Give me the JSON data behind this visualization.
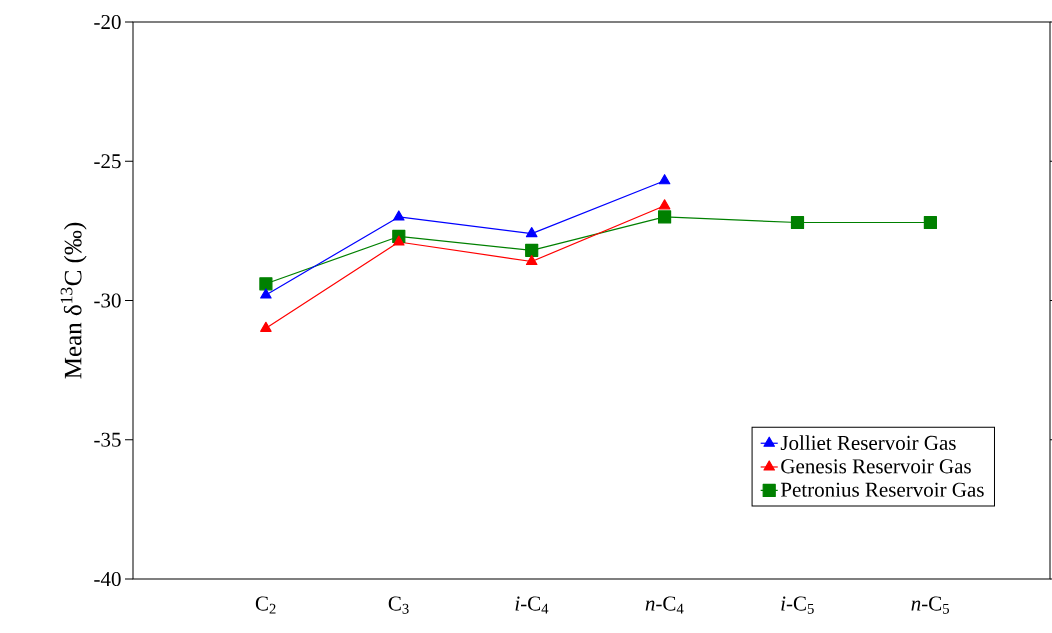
{
  "chart_data": {
    "type": "line",
    "ylabel": "Mean δ$^{13}$C (‰)",
    "categories": [
      "C$_{2}$",
      "C$_{3}$",
      "*i*-C$_{4}$",
      "*n*-C$_{4}$",
      "*i*-C$_{5}$",
      "*n*-C$_{5}$"
    ],
    "series": [
      {
        "name": "Jolliet Reservoir Gas",
        "color": "#0000ff",
        "marker": "triangle",
        "values": [
          -29.8,
          -27.0,
          -27.6,
          -25.7,
          null,
          null
        ]
      },
      {
        "name": "Genesis Reservoir Gas",
        "color": "#ff0000",
        "marker": "triangle",
        "values": [
          -31.0,
          -27.9,
          -28.6,
          -26.6,
          null,
          null
        ]
      },
      {
        "name": "Petronius Reservoir Gas",
        "color": "#008000",
        "marker": "square",
        "values": [
          -29.4,
          -27.7,
          -28.2,
          -27.0,
          -27.2,
          -27.2
        ]
      }
    ],
    "ylim": [
      -40,
      -20
    ],
    "yticks": [
      -40,
      -35,
      -30,
      -25,
      -20
    ],
    "grid": false,
    "legend": "bottom right",
    "line_style": "solid"
  }
}
